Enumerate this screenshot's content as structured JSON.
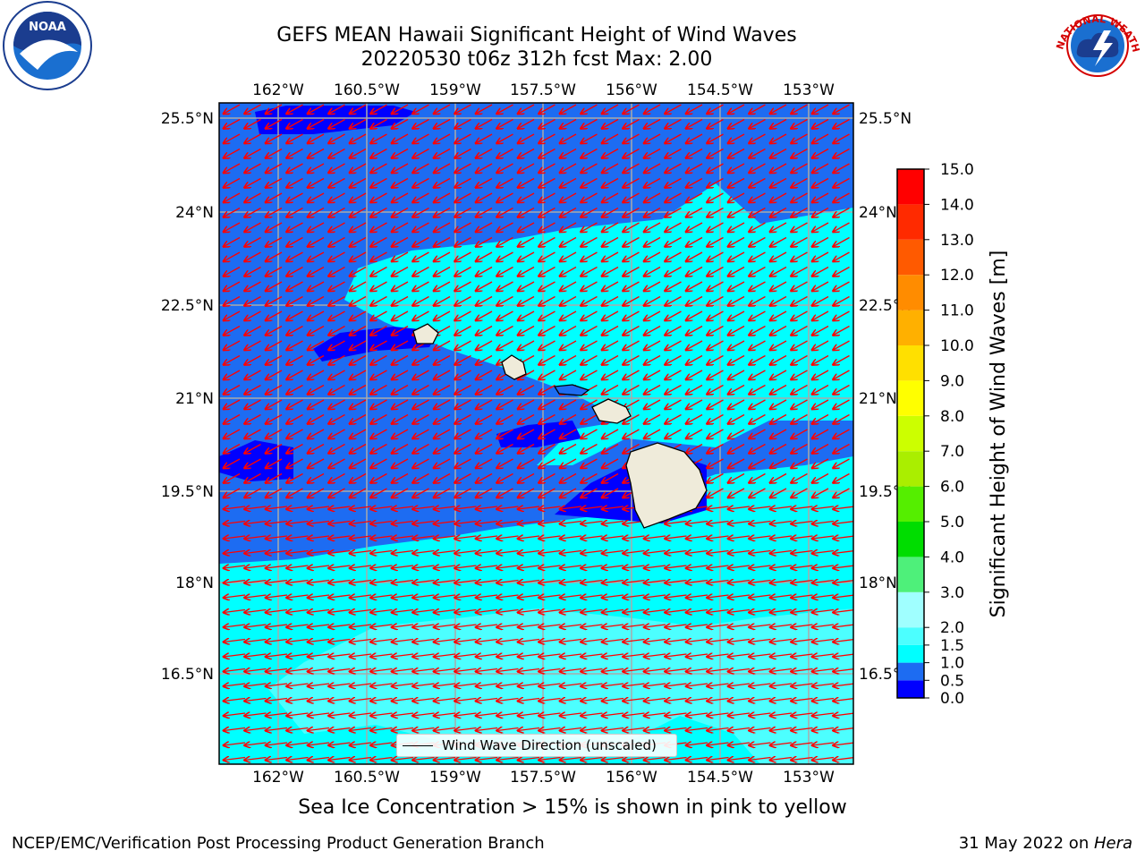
{
  "header": {
    "title_line1": "GEFS MEAN Hawaii Significant Height of Wind Waves",
    "title_line2": "20220530 t06z 312h fcst   Max: 2.00"
  },
  "logos": {
    "left": "noaa-logo",
    "left_text": "NOAA",
    "right": "nws-logo",
    "right_text": "NATIONAL WEATHER SERVICE"
  },
  "map": {
    "lon_ticks": [
      "162°W",
      "160.5°W",
      "159°W",
      "157.5°W",
      "156°W",
      "154.5°W",
      "153°W"
    ],
    "lat_ticks": [
      "25.5°N",
      "24°N",
      "22.5°N",
      "21°N",
      "19.5°N",
      "18°N",
      "16.5°N"
    ],
    "legend_label": "Wind Wave Direction (unscaled)",
    "arrow_color": "#ff0000",
    "land_color": "#efebda"
  },
  "colorbar": {
    "label": "Significant Height of Wind Waves [m]",
    "ticks": [
      "0.0",
      "0.5",
      "1.0",
      "1.5",
      "2.0",
      "3.0",
      "4.0",
      "5.0",
      "6.0",
      "7.0",
      "8.0",
      "9.0",
      "10.0",
      "11.0",
      "12.0",
      "13.0",
      "14.0",
      "15.0"
    ],
    "colors": [
      "#0000ff",
      "#1d6cf2",
      "#00ffff",
      "#4cffff",
      "#a0ffff",
      "#4ef07a",
      "#00dd00",
      "#55ee00",
      "#aaee00",
      "#ccff00",
      "#ffff00",
      "#ffe000",
      "#ffb000",
      "#ff8c00",
      "#ff5a00",
      "#ff2a00",
      "#ff0000"
    ]
  },
  "subtitle": "Sea Ice Concentration > 15% is shown in pink to yellow",
  "footer": {
    "left": "NCEP/EMC/Verification Post Processing Product Generation Branch",
    "right_prefix": "31 May 2022 on ",
    "right_host": "Hera"
  }
}
